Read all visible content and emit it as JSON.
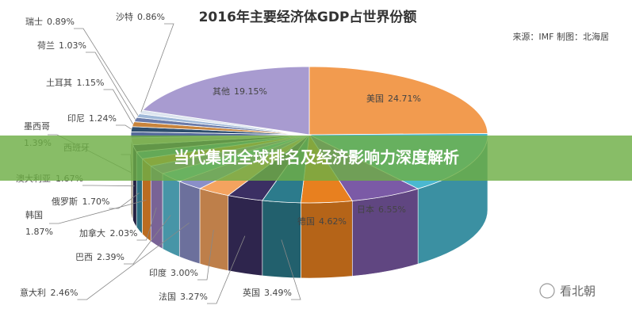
{
  "chart_data": {
    "type": "pie",
    "title": "2016年主要经济体GDP占世界份额",
    "source": "来源：IMF 制图：北海居",
    "categories": [
      "美国",
      null,
      "日本",
      "德国",
      "英国",
      "法国",
      "印度",
      "意大利",
      "巴西",
      "加拿大",
      "韩国",
      "俄罗斯",
      "澳大利亚",
      "西班牙",
      "墨西哥",
      "印尼",
      "土耳其",
      "荷兰",
      "瑞士",
      "沙特",
      "其他"
    ],
    "values": [
      24.71,
      14.84,
      6.55,
      4.62,
      3.49,
      3.27,
      3.0,
      2.46,
      2.39,
      2.03,
      1.87,
      1.7,
      1.67,
      1.64,
      1.39,
      1.24,
      1.15,
      1.03,
      0.89,
      0.86,
      19.15
    ],
    "value_labels": [
      "24.71%",
      null,
      "6.55%",
      "4.62%",
      "3.49%",
      "3.27%",
      "3.00%",
      "2.46%",
      "2.39%",
      "2.03%",
      "1.87%",
      "1.70%",
      "1.67%",
      null,
      "1.39%",
      "1.24%",
      "1.15%",
      "1.03%",
      "0.89%",
      "0.86%",
      "19.15%"
    ],
    "colors": [
      "#f29b4f",
      "#4bb8d0",
      "#7b5aa6",
      "#e8801f",
      "#2c7b8c",
      "#3b2f63",
      "#f4a35f",
      "#8a8fc8",
      "#5bbfd6",
      "#9b7fc0",
      "#f08a2a",
      "#3a8fa8",
      "#2f2a55",
      "#c9b89a",
      "#556b9a",
      "#2f4f6f",
      "#c8843c",
      "#6a7aa8",
      "#9fb8d8",
      "#dde5ef",
      "#a89bd0"
    ]
  },
  "banner": "当代集团全球排名及经济影响力深度解析",
  "watermark": "看北朝"
}
